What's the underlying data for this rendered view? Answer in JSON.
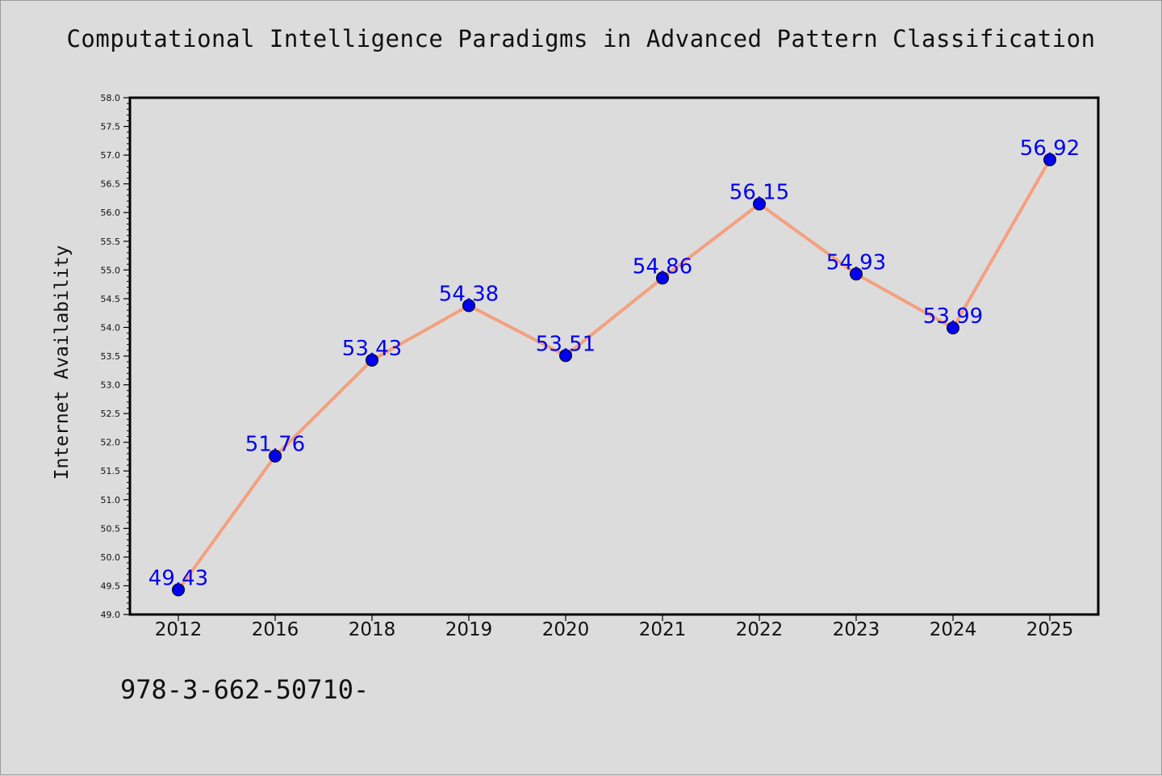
{
  "chart_data": {
    "type": "line",
    "title": "Computational Intelligence Paradigms in Advanced Pattern Classification",
    "xlabel": "",
    "ylabel": "Internet Availability",
    "categories": [
      "2012",
      "2016",
      "2018",
      "2019",
      "2020",
      "2021",
      "2022",
      "2023",
      "2024",
      "2025"
    ],
    "values": [
      49.43,
      51.76,
      53.43,
      54.38,
      53.51,
      54.86,
      56.15,
      54.93,
      53.99,
      56.92
    ],
    "data_labels": [
      "49.43",
      "51.76",
      "53.43",
      "54.38",
      "53.51",
      "54.86",
      "56.15",
      "54.93",
      "53.99",
      "56.92"
    ],
    "ylim": [
      49.0,
      58.0
    ],
    "yticks": [
      "49.0",
      "49.5",
      "50.0",
      "50.5",
      "51.0",
      "51.5",
      "52.0",
      "52.5",
      "53.0",
      "53.5",
      "54.0",
      "54.5",
      "55.0",
      "55.5",
      "56.0",
      "56.5",
      "57.0",
      "57.5",
      "58.0"
    ],
    "grid": false,
    "line_color": "#f4a07e",
    "marker_color": "#0000ee",
    "label_color": "#0000ee"
  },
  "footer": {
    "isbn": "978-3-662-50710-"
  }
}
